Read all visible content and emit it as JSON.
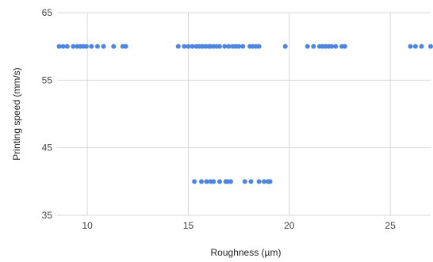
{
  "chart_data": {
    "type": "scatter",
    "title": "",
    "xlabel": "Roughness (µm)",
    "ylabel": "Printing speed (mm/s)",
    "xlim": [
      8.5,
      27
    ],
    "ylim": [
      35,
      65
    ],
    "xticks": [
      10,
      15,
      20,
      25
    ],
    "yticks": [
      35,
      45,
      55,
      65
    ],
    "grid": true,
    "legend": "none",
    "marker_color": "#4a86e8",
    "series": [
      {
        "points": [
          [
            8.6,
            60
          ],
          [
            8.8,
            60
          ],
          [
            9.0,
            60
          ],
          [
            9.3,
            60
          ],
          [
            9.5,
            60
          ],
          [
            9.65,
            60
          ],
          [
            9.8,
            60
          ],
          [
            9.95,
            60
          ],
          [
            10.2,
            60
          ],
          [
            10.5,
            60
          ],
          [
            10.8,
            60
          ],
          [
            11.3,
            60
          ],
          [
            11.75,
            60
          ],
          [
            11.9,
            60
          ],
          [
            14.5,
            60
          ],
          [
            14.8,
            60
          ],
          [
            15.0,
            60
          ],
          [
            15.2,
            60
          ],
          [
            15.4,
            60
          ],
          [
            15.55,
            60
          ],
          [
            15.7,
            60
          ],
          [
            15.85,
            60
          ],
          [
            16.0,
            60
          ],
          [
            16.1,
            60
          ],
          [
            16.25,
            60
          ],
          [
            16.4,
            60
          ],
          [
            16.55,
            60
          ],
          [
            16.8,
            60
          ],
          [
            17.0,
            60
          ],
          [
            17.2,
            60
          ],
          [
            17.35,
            60
          ],
          [
            17.5,
            60
          ],
          [
            17.7,
            60
          ],
          [
            18.05,
            60
          ],
          [
            18.2,
            60
          ],
          [
            18.35,
            60
          ],
          [
            18.5,
            60
          ],
          [
            19.8,
            60
          ],
          [
            20.9,
            60
          ],
          [
            21.2,
            60
          ],
          [
            21.5,
            60
          ],
          [
            21.65,
            60
          ],
          [
            21.8,
            60
          ],
          [
            21.95,
            60
          ],
          [
            22.1,
            60
          ],
          [
            22.3,
            60
          ],
          [
            22.6,
            60
          ],
          [
            22.75,
            60
          ],
          [
            26.0,
            60
          ],
          [
            26.25,
            60
          ],
          [
            26.55,
            60
          ],
          [
            27.0,
            60
          ],
          [
            15.3,
            40
          ],
          [
            15.65,
            40
          ],
          [
            15.9,
            40
          ],
          [
            16.1,
            40
          ],
          [
            16.25,
            40
          ],
          [
            16.55,
            40
          ],
          [
            16.85,
            40
          ],
          [
            16.95,
            40
          ],
          [
            17.1,
            40
          ],
          [
            17.8,
            40
          ],
          [
            18.1,
            40
          ],
          [
            18.5,
            40
          ],
          [
            18.75,
            40
          ],
          [
            18.95,
            40
          ],
          [
            19.05,
            40
          ]
        ]
      }
    ]
  }
}
